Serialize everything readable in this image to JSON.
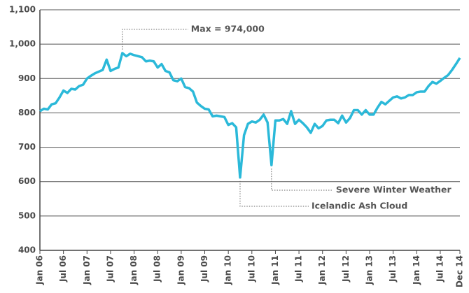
{
  "chart_data": {
    "type": "line",
    "categories": [
      "Jan 06",
      null,
      null,
      null,
      null,
      null,
      "Jul 06",
      null,
      null,
      null,
      null,
      null,
      "Jan 07",
      null,
      null,
      null,
      null,
      null,
      "Jul 07",
      null,
      null,
      null,
      null,
      null,
      "Jan 08",
      null,
      null,
      null,
      null,
      null,
      "Jul 08",
      null,
      null,
      null,
      null,
      null,
      "Jan 09",
      null,
      null,
      null,
      null,
      null,
      "Jul 09",
      null,
      null,
      null,
      null,
      null,
      "Jan 10",
      null,
      null,
      null,
      null,
      null,
      "Jul 10",
      null,
      null,
      null,
      null,
      null,
      "Jan 11",
      null,
      null,
      null,
      null,
      null,
      "Jul 11",
      null,
      null,
      null,
      null,
      null,
      "Jan 12",
      null,
      null,
      null,
      null,
      null,
      "Jul 12",
      null,
      null,
      null,
      null,
      null,
      "Jan 13",
      null,
      null,
      null,
      null,
      null,
      "Jul 13",
      null,
      null,
      null,
      null,
      null,
      "Jan 14",
      null,
      null,
      null,
      null,
      null,
      "Jul 14",
      null,
      null,
      null,
      null,
      "Dec 14"
    ],
    "series": [
      {
        "color": "#2bb9d9",
        "values": [
          805,
          812,
          810,
          825,
          828,
          845,
          865,
          858,
          870,
          868,
          878,
          882,
          900,
          908,
          915,
          920,
          925,
          955,
          922,
          928,
          932,
          974,
          965,
          972,
          968,
          965,
          962,
          950,
          952,
          950,
          932,
          942,
          922,
          918,
          895,
          892,
          900,
          875,
          872,
          862,
          830,
          820,
          812,
          810,
          790,
          792,
          790,
          788,
          765,
          770,
          758,
          612,
          735,
          768,
          775,
          772,
          780,
          795,
          772,
          648,
          778,
          778,
          782,
          768,
          805,
          768,
          780,
          770,
          758,
          742,
          768,
          755,
          762,
          778,
          780,
          780,
          770,
          792,
          772,
          785,
          808,
          808,
          795,
          808,
          795,
          795,
          815,
          832,
          825,
          835,
          845,
          848,
          842,
          845,
          852,
          852,
          860,
          862,
          862,
          878,
          890,
          885,
          893,
          902,
          910,
          925,
          942,
          960
        ]
      }
    ],
    "ylim": [
      400,
      1100
    ],
    "yticks": [
      400,
      500,
      600,
      700,
      800,
      900,
      {
        "value": 1000,
        "label": "1,000"
      },
      {
        "value": 1100,
        "label": "1,100"
      }
    ],
    "grid": true,
    "annotations": [
      "Max = 974,000",
      "Icelandic Ash Cloud",
      "Severe Winter Weather"
    ]
  }
}
